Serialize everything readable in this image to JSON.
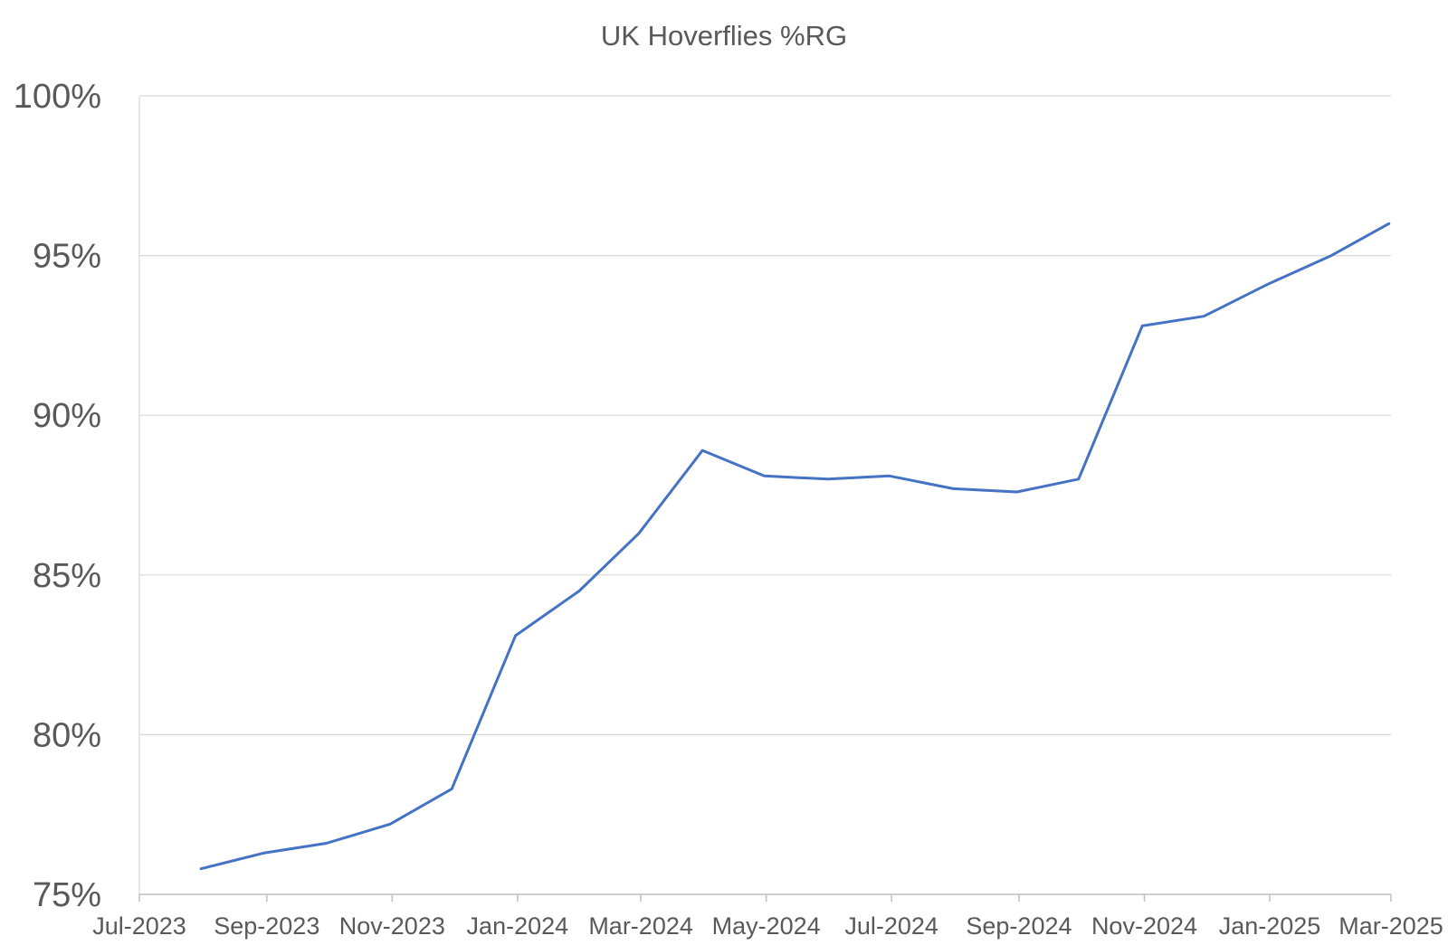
{
  "chart_data": {
    "type": "line",
    "title": "UK Hoverflies %RG",
    "xlabel": "",
    "ylabel": "",
    "ylim": [
      0.75,
      1.0
    ],
    "xlim": [
      "2023-07-01",
      "2025-03-01"
    ],
    "y_ticks": [
      {
        "value": 1.0,
        "label": "100%"
      },
      {
        "value": 0.95,
        "label": "95%"
      },
      {
        "value": 0.9,
        "label": "90%"
      },
      {
        "value": 0.85,
        "label": "85%"
      },
      {
        "value": 0.8,
        "label": "80%"
      },
      {
        "value": 0.75,
        "label": "75%"
      }
    ],
    "x_ticks": [
      {
        "date": "2023-07-01",
        "label": "Jul-2023"
      },
      {
        "date": "2023-09-01",
        "label": "Sep-2023"
      },
      {
        "date": "2023-11-01",
        "label": "Nov-2023"
      },
      {
        "date": "2024-01-01",
        "label": "Jan-2024"
      },
      {
        "date": "2024-03-01",
        "label": "Mar-2024"
      },
      {
        "date": "2024-05-01",
        "label": "May-2024"
      },
      {
        "date": "2024-07-01",
        "label": "Jul-2024"
      },
      {
        "date": "2024-09-01",
        "label": "Sep-2024"
      },
      {
        "date": "2024-11-01",
        "label": "Nov-2024"
      },
      {
        "date": "2025-01-01",
        "label": "Jan-2025"
      },
      {
        "date": "2025-03-01",
        "label": "Mar-2025"
      }
    ],
    "grid": true,
    "series_color": "#4472C4",
    "series": [
      {
        "x": [
          "2023-07-31",
          "2023-08-31",
          "2023-09-30",
          "2023-10-31",
          "2023-11-30",
          "2023-12-31",
          "2024-01-31",
          "2024-02-29",
          "2024-03-31",
          "2024-04-30",
          "2024-05-31",
          "2024-06-30",
          "2024-07-31",
          "2024-08-31",
          "2024-09-30",
          "2024-10-31",
          "2024-11-30",
          "2024-12-31",
          "2025-01-31",
          "2025-02-28"
        ],
        "values": [
          0.758,
          0.763,
          0.766,
          0.772,
          0.783,
          0.831,
          0.845,
          0.863,
          0.889,
          0.881,
          0.88,
          0.881,
          0.877,
          0.876,
          0.88,
          0.928,
          0.931,
          0.941,
          0.95,
          0.96
        ]
      }
    ]
  }
}
